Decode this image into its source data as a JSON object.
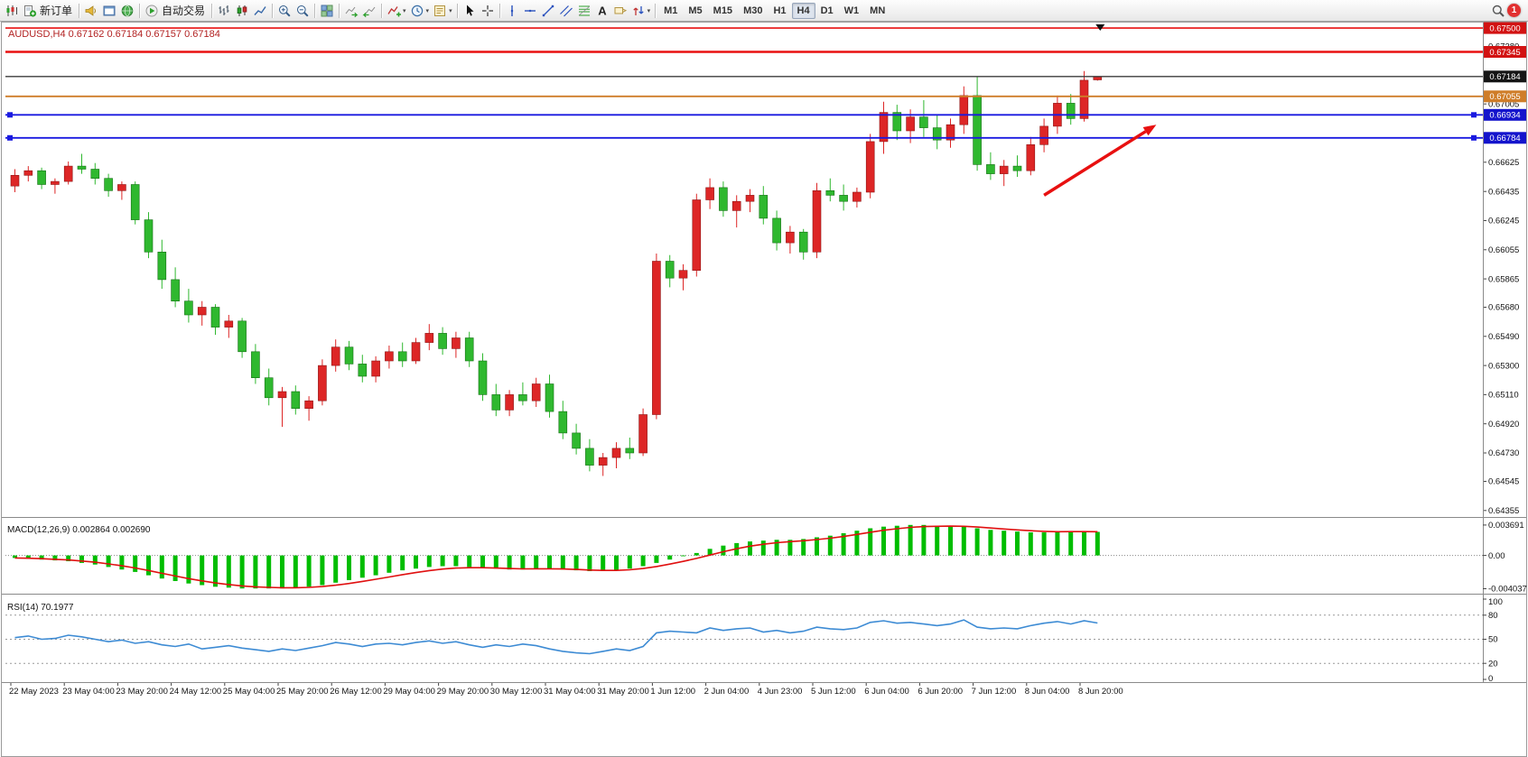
{
  "toolbar": {
    "active_timeframe": "H4",
    "buttons": [
      {
        "name": "symbols-chart-button",
        "icon": "candles-new"
      },
      {
        "name": "new-order-button",
        "icon": "order",
        "label": "新订单"
      },
      {
        "sep": true
      },
      {
        "name": "alerts-button",
        "icon": "horn"
      },
      {
        "name": "new-chart-button",
        "icon": "window"
      },
      {
        "name": "market-watch-button",
        "icon": "globe"
      },
      {
        "sep": true
      },
      {
        "name": "auto-trading-button",
        "icon": "play",
        "label": "自动交易"
      },
      {
        "sep": true
      },
      {
        "name": "bar-chart-button",
        "icon": "bars-mode"
      },
      {
        "name": "candlestick-chart-button",
        "icon": "candles-mode"
      },
      {
        "name": "line-chart-button",
        "icon": "line-mode"
      },
      {
        "sep": true
      },
      {
        "name": "zoom-in-button",
        "icon": "zoom-in"
      },
      {
        "name": "zoom-out-button",
        "icon": "zoom-out"
      },
      {
        "sep": true
      },
      {
        "name": "tile-windows-button",
        "icon": "tile"
      },
      {
        "sep": true
      },
      {
        "name": "auto-scroll-button",
        "icon": "scroll"
      },
      {
        "name": "chart-shift-button",
        "icon": "shift"
      },
      {
        "sep": true
      },
      {
        "name": "indicators-button",
        "icon": "indicator-add",
        "dropdown": true
      },
      {
        "name": "periods-button",
        "icon": "clock",
        "dropdown": true
      },
      {
        "name": "templates-button",
        "icon": "template",
        "dropdown": true
      },
      {
        "sep": true
      },
      {
        "name": "cursor-button",
        "icon": "cursor"
      },
      {
        "name": "crosshair-button",
        "icon": "crosshair"
      },
      {
        "sep": true
      },
      {
        "name": "vertical-line-button",
        "icon": "vline"
      },
      {
        "name": "horizontal-line-button",
        "icon": "hline"
      },
      {
        "name": "trendline-button",
        "icon": "trendline"
      },
      {
        "name": "equidistant-channel-button",
        "icon": "channel"
      },
      {
        "name": "fibonacci-button",
        "icon": "fibo"
      },
      {
        "name": "text-button",
        "icon": "text"
      },
      {
        "name": "text-label-button",
        "icon": "label"
      },
      {
        "name": "arrows-button",
        "icon": "arrows",
        "dropdown": true
      },
      {
        "sep": true
      },
      {
        "tf": "M1"
      },
      {
        "tf": "M5"
      },
      {
        "tf": "M15"
      },
      {
        "tf": "M30"
      },
      {
        "tf": "H1"
      },
      {
        "tf": "H4"
      },
      {
        "tf": "D1"
      },
      {
        "tf": "W1"
      },
      {
        "tf": "MN"
      },
      {
        "spacer": true
      },
      {
        "name": "search-button",
        "icon": "search"
      },
      {
        "name": "notification-badge",
        "badge": "1"
      }
    ]
  },
  "chart_data": [
    {
      "type": "candlestick",
      "title": "AUDUSD,H4",
      "ohlc": [
        "0.67162",
        "0.67184",
        "0.67157",
        "0.67184"
      ],
      "header": "AUDUSD,H4  0.67162 0.67184 0.67157 0.67184",
      "up_color": "#dd2626",
      "down_color": "#2fb82f",
      "ylim": [
        0.6433,
        0.6753
      ],
      "y_ticks": [
        0.6738,
        0.67005,
        0.66625,
        0.66435,
        0.66245,
        0.66055,
        0.65865,
        0.6568,
        0.6549,
        0.653,
        0.6511,
        0.6492,
        0.6473,
        0.64545,
        0.64355
      ],
      "label_step": 4,
      "x_labels": [
        "22 May 2023",
        "23 May 04:00",
        "23 May 20:00",
        "24 May 12:00",
        "25 May 04:00",
        "25 May 20:00",
        "26 May 12:00",
        "29 May 04:00",
        "29 May 20:00",
        "30 May 12:00",
        "31 May 04:00",
        "31 May 20:00",
        "1 Jun 12:00",
        "2 Jun 04:00",
        "4 Jun 23:00",
        "5 Jun 12:00",
        "6 Jun 04:00",
        "6 Jun 20:00",
        "7 Jun 12:00",
        "8 Jun 04:00",
        "8 Jun 20:00"
      ],
      "candles": [
        [
          0.6647,
          0.6658,
          0.6643,
          0.6654
        ],
        [
          0.6654,
          0.666,
          0.665,
          0.6657
        ],
        [
          0.6657,
          0.6659,
          0.6645,
          0.6648
        ],
        [
          0.6648,
          0.6652,
          0.6642,
          0.665
        ],
        [
          0.665,
          0.6663,
          0.6648,
          0.666
        ],
        [
          0.666,
          0.6668,
          0.6655,
          0.6658
        ],
        [
          0.6658,
          0.6662,
          0.6648,
          0.6652
        ],
        [
          0.6652,
          0.6655,
          0.664,
          0.6644
        ],
        [
          0.6644,
          0.665,
          0.6638,
          0.6648
        ],
        [
          0.6648,
          0.665,
          0.6622,
          0.6625
        ],
        [
          0.6625,
          0.663,
          0.66,
          0.6604
        ],
        [
          0.6604,
          0.6612,
          0.658,
          0.6586
        ],
        [
          0.6586,
          0.6594,
          0.6568,
          0.6572
        ],
        [
          0.6572,
          0.658,
          0.6558,
          0.6563
        ],
        [
          0.6563,
          0.6572,
          0.6556,
          0.6568
        ],
        [
          0.6568,
          0.657,
          0.655,
          0.6555
        ],
        [
          0.6555,
          0.6563,
          0.6548,
          0.6559
        ],
        [
          0.6559,
          0.6561,
          0.6535,
          0.6539
        ],
        [
          0.6539,
          0.6544,
          0.6518,
          0.6522
        ],
        [
          0.6522,
          0.6528,
          0.6504,
          0.6509
        ],
        [
          0.6509,
          0.6516,
          0.649,
          0.6513
        ],
        [
          0.6513,
          0.6517,
          0.6498,
          0.6502
        ],
        [
          0.6502,
          0.651,
          0.6494,
          0.6507
        ],
        [
          0.6507,
          0.6534,
          0.6504,
          0.653
        ],
        [
          0.653,
          0.6547,
          0.6526,
          0.6542
        ],
        [
          0.6542,
          0.6546,
          0.6527,
          0.6531
        ],
        [
          0.6531,
          0.6537,
          0.6519,
          0.6523
        ],
        [
          0.6523,
          0.6536,
          0.6519,
          0.6533
        ],
        [
          0.6533,
          0.6543,
          0.6528,
          0.6539
        ],
        [
          0.6539,
          0.6545,
          0.6529,
          0.6533
        ],
        [
          0.6533,
          0.6548,
          0.6531,
          0.6545
        ],
        [
          0.6545,
          0.6557,
          0.654,
          0.6551
        ],
        [
          0.6551,
          0.6555,
          0.6537,
          0.6541
        ],
        [
          0.6541,
          0.6552,
          0.6535,
          0.6548
        ],
        [
          0.6548,
          0.6552,
          0.6529,
          0.6533
        ],
        [
          0.6533,
          0.6538,
          0.6507,
          0.6511
        ],
        [
          0.6511,
          0.6518,
          0.6497,
          0.6501
        ],
        [
          0.6501,
          0.6514,
          0.6497,
          0.6511
        ],
        [
          0.6511,
          0.6519,
          0.6504,
          0.6507
        ],
        [
          0.6507,
          0.6522,
          0.6503,
          0.6518
        ],
        [
          0.6518,
          0.6524,
          0.6496,
          0.65
        ],
        [
          0.65,
          0.6507,
          0.6482,
          0.6486
        ],
        [
          0.6486,
          0.6492,
          0.6472,
          0.6476
        ],
        [
          0.6476,
          0.6482,
          0.6461,
          0.6465
        ],
        [
          0.6465,
          0.6473,
          0.6458,
          0.647
        ],
        [
          0.647,
          0.648,
          0.6463,
          0.6476
        ],
        [
          0.6476,
          0.6483,
          0.6469,
          0.6473
        ],
        [
          0.6473,
          0.6502,
          0.6471,
          0.6498
        ],
        [
          0.6498,
          0.6603,
          0.6495,
          0.6598
        ],
        [
          0.6598,
          0.6602,
          0.6581,
          0.6587
        ],
        [
          0.6587,
          0.6596,
          0.6579,
          0.6592
        ],
        [
          0.6592,
          0.6642,
          0.6588,
          0.6638
        ],
        [
          0.6638,
          0.6652,
          0.6632,
          0.6646
        ],
        [
          0.6646,
          0.665,
          0.6627,
          0.6631
        ],
        [
          0.6631,
          0.6641,
          0.662,
          0.6637
        ],
        [
          0.6637,
          0.6645,
          0.663,
          0.6641
        ],
        [
          0.6641,
          0.6647,
          0.6622,
          0.6626
        ],
        [
          0.6626,
          0.6631,
          0.6605,
          0.661
        ],
        [
          0.661,
          0.6621,
          0.6603,
          0.6617
        ],
        [
          0.6617,
          0.6619,
          0.6599,
          0.6604
        ],
        [
          0.6604,
          0.6649,
          0.66,
          0.6644
        ],
        [
          0.6644,
          0.6652,
          0.6637,
          0.6641
        ],
        [
          0.6641,
          0.6648,
          0.6631,
          0.6637
        ],
        [
          0.6637,
          0.6646,
          0.6633,
          0.6643
        ],
        [
          0.6643,
          0.6681,
          0.6639,
          0.6676
        ],
        [
          0.6676,
          0.6702,
          0.6668,
          0.6695
        ],
        [
          0.6695,
          0.67,
          0.6677,
          0.6683
        ],
        [
          0.6683,
          0.6697,
          0.6675,
          0.6692
        ],
        [
          0.6692,
          0.6703,
          0.6679,
          0.6685
        ],
        [
          0.6685,
          0.6693,
          0.6671,
          0.6677
        ],
        [
          0.6677,
          0.6691,
          0.6672,
          0.6687
        ],
        [
          0.6687,
          0.6712,
          0.6681,
          0.6706
        ],
        [
          0.6706,
          0.6718,
          0.6657,
          0.6661
        ],
        [
          0.6661,
          0.6669,
          0.6651,
          0.6655
        ],
        [
          0.6655,
          0.6664,
          0.6647,
          0.666
        ],
        [
          0.666,
          0.6667,
          0.6653,
          0.6657
        ],
        [
          0.6657,
          0.6679,
          0.6654,
          0.6674
        ],
        [
          0.6674,
          0.6691,
          0.6669,
          0.6686
        ],
        [
          0.6686,
          0.6706,
          0.6681,
          0.6701
        ],
        [
          0.6701,
          0.6707,
          0.6687,
          0.6691
        ],
        [
          0.6691,
          0.6722,
          0.6689,
          0.6716
        ],
        [
          0.67162,
          0.67184,
          0.67157,
          0.67184
        ]
      ],
      "hlines": [
        {
          "price": 0.675,
          "label": "0.67500",
          "color": "#e81010",
          "width": 1.6,
          "label_bg": "#d21212"
        },
        {
          "price": 0.67345,
          "label": "0.67345",
          "color": "#e81010",
          "width": 2.6,
          "label_bg": "#d21212"
        },
        {
          "price": 0.67184,
          "label": "0.67184",
          "color": "#3c3c3c",
          "width": 1.4,
          "label_bg": "#151515"
        },
        {
          "price": 0.67055,
          "label": "0.67055",
          "color": "#cf7d28",
          "width": 1.8,
          "label_bg": "#cf7d28"
        },
        {
          "price": 0.66934,
          "label": "0.66934",
          "color": "#1a1ae0",
          "width": 1.8,
          "label_bg": "#1414cc",
          "handles": true
        },
        {
          "price": 0.66784,
          "label": "0.66784",
          "color": "#1a1ae0",
          "width": 1.8,
          "label_bg": "#1414cc",
          "handles": true
        }
      ],
      "trend_arrow": {
        "from_index": 77,
        "from_price": 0.6641,
        "to_index": 85.4,
        "to_price": 0.6687,
        "color": "#e81010"
      },
      "marker": {
        "index": 81.2,
        "symbol": "down-triangle"
      }
    },
    {
      "type": "bar",
      "name": "MACD(12,26,9)",
      "values_label": "0.002864 0.002690",
      "label": "MACD(12,26,9) 0.002864 0.002690",
      "histogram_color": "#00bd00",
      "signal_color": "#e01010",
      "ylim": [
        -0.0042,
        0.0039
      ],
      "axis_labels": [
        {
          "value": 0.003691,
          "label": "0.003691"
        },
        {
          "value": 0,
          "label": "0.00"
        },
        {
          "value": -0.004037,
          "label": "-0.004037"
        }
      ],
      "values": [
        -0.0003,
        -0.0004,
        -0.0005,
        -0.0006,
        -0.0007,
        -0.0009,
        -0.0011,
        -0.0014,
        -0.0017,
        -0.002,
        -0.0024,
        -0.0028,
        -0.0031,
        -0.0034,
        -0.0036,
        -0.0038,
        -0.0039,
        -0.004,
        -0.004,
        -0.004,
        -0.004,
        -0.0039,
        -0.0038,
        -0.0036,
        -0.0033,
        -0.003,
        -0.0027,
        -0.0024,
        -0.0021,
        -0.0018,
        -0.0016,
        -0.0014,
        -0.0013,
        -0.0013,
        -0.0014,
        -0.0015,
        -0.0016,
        -0.0017,
        -0.0017,
        -0.0016,
        -0.0016,
        -0.0017,
        -0.0018,
        -0.0019,
        -0.0019,
        -0.0018,
        -0.0016,
        -0.0013,
        -0.0009,
        -0.0005,
        -0.0001,
        0.0003,
        0.0008,
        0.0012,
        0.0015,
        0.0017,
        0.0018,
        0.0019,
        0.0019,
        0.002,
        0.0022,
        0.0024,
        0.0027,
        0.003,
        0.0033,
        0.0035,
        0.0036,
        0.0037,
        0.0037,
        0.0036,
        0.0036,
        0.0035,
        0.0033,
        0.0031,
        0.003,
        0.0029,
        0.0028,
        0.0028,
        0.0028,
        0.0029,
        0.0029,
        0.002864
      ]
    },
    {
      "type": "line",
      "name": "RSI(14)",
      "values_label": "70.1977",
      "label": "RSI(14) 70.1977",
      "line_color": "#3d8bd4",
      "ylim": [
        0,
        100
      ],
      "levels": [
        80,
        50,
        20
      ],
      "axis_labels": [
        {
          "value": 100,
          "label": "100"
        },
        {
          "value": 80,
          "label": "80"
        },
        {
          "value": 50,
          "label": "50"
        },
        {
          "value": 20,
          "label": "20"
        },
        {
          "value": 0,
          "label": "0"
        }
      ],
      "values": [
        52,
        54,
        50,
        51,
        55,
        53,
        50,
        47,
        49,
        45,
        47,
        43,
        41,
        44,
        38,
        40,
        42,
        39,
        37,
        35,
        38,
        36,
        39,
        42,
        46,
        44,
        41,
        44,
        45,
        43,
        46,
        48,
        45,
        47,
        43,
        40,
        43,
        41,
        44,
        42,
        38,
        35,
        33,
        32,
        35,
        38,
        36,
        41,
        58,
        60,
        59,
        58,
        64,
        61,
        63,
        64,
        59,
        61,
        58,
        60,
        65,
        63,
        62,
        64,
        71,
        73,
        70,
        71,
        69,
        67,
        69,
        74,
        65,
        63,
        64,
        63,
        67,
        70,
        72,
        69,
        73,
        70.1977
      ]
    }
  ]
}
